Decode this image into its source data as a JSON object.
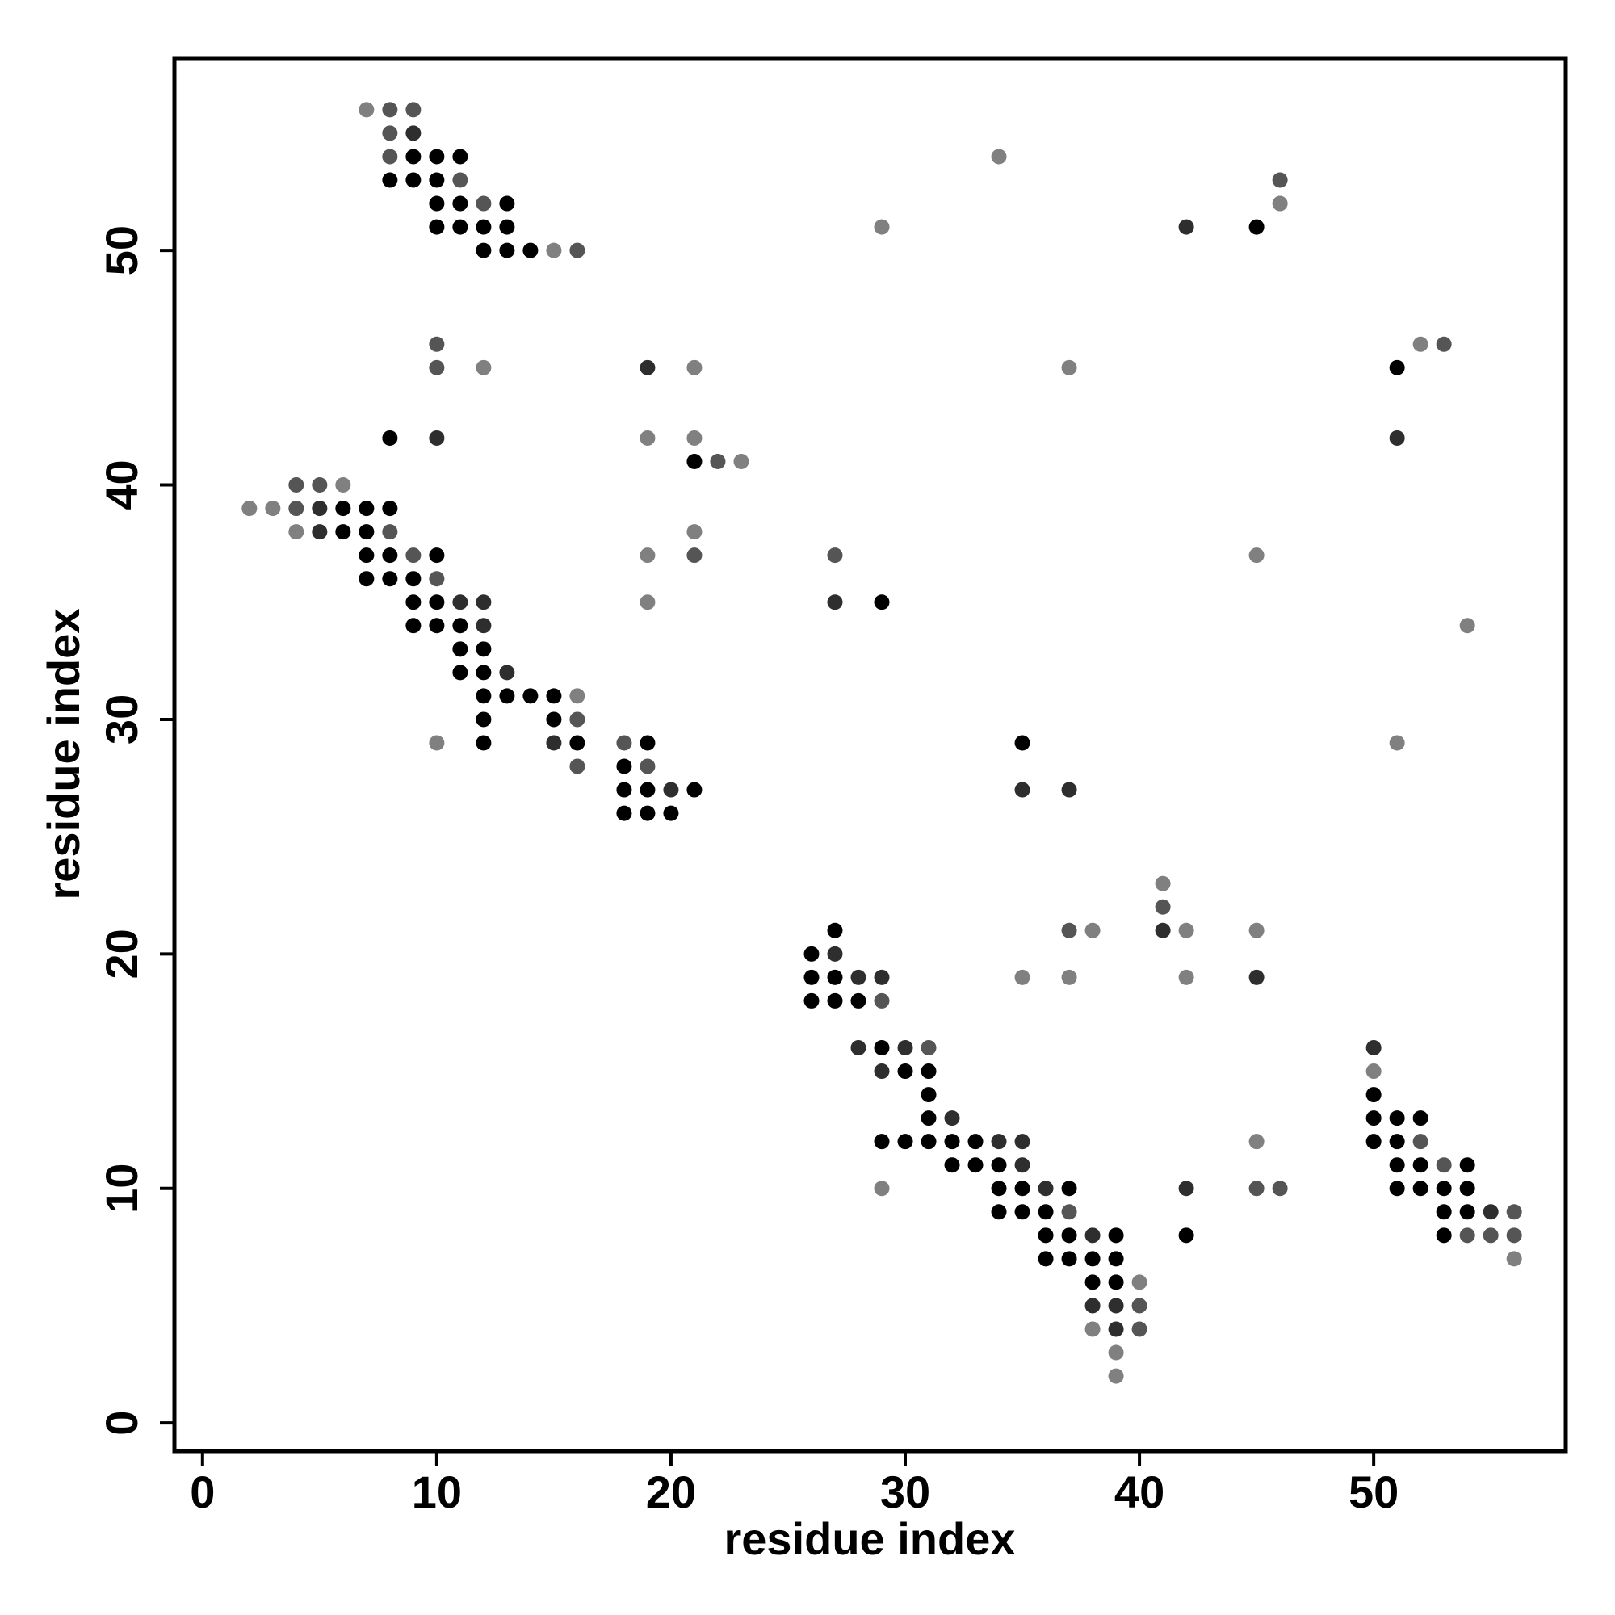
{
  "chart_data": {
    "type": "scatter",
    "title": "",
    "xlabel": "residue index",
    "ylabel": "residue index",
    "xlim": [
      -1.2,
      58.2
    ],
    "ylim": [
      -1.2,
      58.2
    ],
    "xticks": [
      0,
      10,
      20,
      30,
      40,
      50
    ],
    "yticks": [
      0,
      10,
      20,
      30,
      40,
      50
    ],
    "grid": false,
    "legend": "none",
    "shade_colors": {
      "1": "#000000",
      "2": "#2e2e2e",
      "3": "#555555",
      "4": "#808080"
    },
    "points": [
      [
        7,
        56,
        4
      ],
      [
        8,
        56,
        3
      ],
      [
        9,
        56,
        3
      ],
      [
        8,
        55,
        3
      ],
      [
        9,
        55,
        2
      ],
      [
        34,
        54,
        4
      ],
      [
        8,
        54,
        3
      ],
      [
        9,
        54,
        1
      ],
      [
        10,
        54,
        1
      ],
      [
        11,
        54,
        1
      ],
      [
        46,
        53,
        3
      ],
      [
        8,
        53,
        1
      ],
      [
        9,
        53,
        1
      ],
      [
        10,
        53,
        1
      ],
      [
        11,
        53,
        3
      ],
      [
        46,
        52,
        4
      ],
      [
        10,
        52,
        1
      ],
      [
        11,
        52,
        1
      ],
      [
        12,
        52,
        3
      ],
      [
        13,
        52,
        1
      ],
      [
        29,
        51,
        4
      ],
      [
        42,
        51,
        2
      ],
      [
        45,
        51,
        1
      ],
      [
        10,
        51,
        1
      ],
      [
        11,
        51,
        1
      ],
      [
        12,
        51,
        1
      ],
      [
        13,
        51,
        1
      ],
      [
        12,
        50,
        1
      ],
      [
        13,
        50,
        1
      ],
      [
        14,
        50,
        1
      ],
      [
        15,
        50,
        4
      ],
      [
        16,
        50,
        3
      ],
      [
        10,
        46,
        3
      ],
      [
        52,
        46,
        4
      ],
      [
        53,
        46,
        3
      ],
      [
        10,
        45,
        3
      ],
      [
        12,
        45,
        4
      ],
      [
        19,
        45,
        2
      ],
      [
        21,
        45,
        4
      ],
      [
        37,
        45,
        4
      ],
      [
        51,
        45,
        1
      ],
      [
        8,
        42,
        1
      ],
      [
        10,
        42,
        2
      ],
      [
        19,
        42,
        4
      ],
      [
        21,
        42,
        4
      ],
      [
        51,
        42,
        2
      ],
      [
        21,
        41,
        1
      ],
      [
        22,
        41,
        3
      ],
      [
        23,
        41,
        4
      ],
      [
        4,
        40,
        3
      ],
      [
        5,
        40,
        3
      ],
      [
        6,
        40,
        4
      ],
      [
        2,
        39,
        4
      ],
      [
        3,
        39,
        4
      ],
      [
        4,
        39,
        3
      ],
      [
        5,
        39,
        2
      ],
      [
        6,
        39,
        1
      ],
      [
        7,
        39,
        1
      ],
      [
        8,
        39,
        1
      ],
      [
        4,
        38,
        4
      ],
      [
        5,
        38,
        2
      ],
      [
        6,
        38,
        1
      ],
      [
        7,
        38,
        1
      ],
      [
        8,
        38,
        3
      ],
      [
        21,
        38,
        4
      ],
      [
        7,
        37,
        1
      ],
      [
        8,
        37,
        1
      ],
      [
        9,
        37,
        3
      ],
      [
        10,
        37,
        1
      ],
      [
        19,
        37,
        4
      ],
      [
        21,
        37,
        3
      ],
      [
        27,
        37,
        3
      ],
      [
        45,
        37,
        4
      ],
      [
        7,
        36,
        1
      ],
      [
        8,
        36,
        1
      ],
      [
        9,
        36,
        1
      ],
      [
        10,
        36,
        3
      ],
      [
        9,
        35,
        1
      ],
      [
        10,
        35,
        1
      ],
      [
        11,
        35,
        2
      ],
      [
        12,
        35,
        2
      ],
      [
        19,
        35,
        4
      ],
      [
        27,
        35,
        2
      ],
      [
        29,
        35,
        1
      ],
      [
        9,
        34,
        1
      ],
      [
        10,
        34,
        1
      ],
      [
        11,
        34,
        1
      ],
      [
        12,
        34,
        2
      ],
      [
        54,
        34,
        4
      ],
      [
        11,
        33,
        1
      ],
      [
        12,
        33,
        1
      ],
      [
        11,
        32,
        1
      ],
      [
        12,
        32,
        1
      ],
      [
        13,
        32,
        2
      ],
      [
        12,
        31,
        1
      ],
      [
        13,
        31,
        1
      ],
      [
        14,
        31,
        1
      ],
      [
        15,
        31,
        1
      ],
      [
        16,
        31,
        4
      ],
      [
        12,
        30,
        1
      ],
      [
        15,
        30,
        1
      ],
      [
        16,
        30,
        3
      ],
      [
        10,
        29,
        4
      ],
      [
        12,
        29,
        1
      ],
      [
        15,
        29,
        2
      ],
      [
        16,
        29,
        1
      ],
      [
        18,
        29,
        3
      ],
      [
        19,
        29,
        1
      ],
      [
        35,
        29,
        1
      ],
      [
        51,
        29,
        4
      ],
      [
        16,
        28,
        3
      ],
      [
        18,
        28,
        1
      ],
      [
        19,
        28,
        3
      ],
      [
        18,
        27,
        1
      ],
      [
        19,
        27,
        1
      ],
      [
        20,
        27,
        2
      ],
      [
        21,
        27,
        1
      ],
      [
        35,
        27,
        2
      ],
      [
        37,
        27,
        2
      ],
      [
        18,
        26,
        1
      ],
      [
        19,
        26,
        1
      ],
      [
        20,
        26,
        1
      ],
      [
        41,
        23,
        4
      ],
      [
        41,
        22,
        3
      ],
      [
        27,
        21,
        1
      ],
      [
        37,
        21,
        3
      ],
      [
        38,
        21,
        4
      ],
      [
        41,
        21,
        2
      ],
      [
        42,
        21,
        4
      ],
      [
        45,
        21,
        4
      ],
      [
        26,
        20,
        1
      ],
      [
        27,
        20,
        2
      ],
      [
        26,
        19,
        1
      ],
      [
        27,
        19,
        1
      ],
      [
        28,
        19,
        2
      ],
      [
        29,
        19,
        2
      ],
      [
        35,
        19,
        4
      ],
      [
        37,
        19,
        4
      ],
      [
        42,
        19,
        4
      ],
      [
        45,
        19,
        2
      ],
      [
        26,
        18,
        1
      ],
      [
        27,
        18,
        1
      ],
      [
        28,
        18,
        1
      ],
      [
        29,
        18,
        3
      ],
      [
        28,
        16,
        2
      ],
      [
        29,
        16,
        1
      ],
      [
        30,
        16,
        2
      ],
      [
        31,
        16,
        3
      ],
      [
        50,
        16,
        2
      ],
      [
        29,
        15,
        2
      ],
      [
        30,
        15,
        1
      ],
      [
        31,
        15,
        1
      ],
      [
        50,
        15,
        4
      ],
      [
        31,
        14,
        1
      ],
      [
        50,
        14,
        1
      ],
      [
        31,
        13,
        1
      ],
      [
        32,
        13,
        2
      ],
      [
        50,
        13,
        1
      ],
      [
        51,
        13,
        1
      ],
      [
        52,
        13,
        1
      ],
      [
        29,
        12,
        1
      ],
      [
        30,
        12,
        1
      ],
      [
        31,
        12,
        1
      ],
      [
        32,
        12,
        1
      ],
      [
        33,
        12,
        1
      ],
      [
        34,
        12,
        2
      ],
      [
        35,
        12,
        2
      ],
      [
        45,
        12,
        4
      ],
      [
        50,
        12,
        1
      ],
      [
        51,
        12,
        1
      ],
      [
        52,
        12,
        3
      ],
      [
        32,
        11,
        1
      ],
      [
        33,
        11,
        1
      ],
      [
        34,
        11,
        1
      ],
      [
        35,
        11,
        2
      ],
      [
        51,
        11,
        1
      ],
      [
        52,
        11,
        1
      ],
      [
        53,
        11,
        3
      ],
      [
        54,
        11,
        1
      ],
      [
        29,
        10,
        4
      ],
      [
        34,
        10,
        1
      ],
      [
        35,
        10,
        1
      ],
      [
        36,
        10,
        2
      ],
      [
        37,
        10,
        1
      ],
      [
        42,
        10,
        2
      ],
      [
        45,
        10,
        3
      ],
      [
        46,
        10,
        3
      ],
      [
        51,
        10,
        1
      ],
      [
        52,
        10,
        1
      ],
      [
        53,
        10,
        1
      ],
      [
        54,
        10,
        1
      ],
      [
        34,
        9,
        1
      ],
      [
        35,
        9,
        1
      ],
      [
        36,
        9,
        1
      ],
      [
        37,
        9,
        3
      ],
      [
        53,
        9,
        1
      ],
      [
        54,
        9,
        1
      ],
      [
        55,
        9,
        2
      ],
      [
        56,
        9,
        3
      ],
      [
        36,
        8,
        1
      ],
      [
        37,
        8,
        1
      ],
      [
        38,
        8,
        2
      ],
      [
        39,
        8,
        1
      ],
      [
        42,
        8,
        1
      ],
      [
        53,
        8,
        1
      ],
      [
        54,
        8,
        3
      ],
      [
        55,
        8,
        3
      ],
      [
        56,
        8,
        3
      ],
      [
        36,
        7,
        1
      ],
      [
        37,
        7,
        1
      ],
      [
        38,
        7,
        1
      ],
      [
        39,
        7,
        1
      ],
      [
        56,
        7,
        4
      ],
      [
        38,
        6,
        1
      ],
      [
        39,
        6,
        1
      ],
      [
        40,
        6,
        4
      ],
      [
        38,
        5,
        2
      ],
      [
        39,
        5,
        2
      ],
      [
        40,
        5,
        3
      ],
      [
        38,
        4,
        4
      ],
      [
        39,
        4,
        2
      ],
      [
        40,
        4,
        3
      ],
      [
        39,
        3,
        4
      ],
      [
        39,
        2,
        4
      ]
    ]
  }
}
